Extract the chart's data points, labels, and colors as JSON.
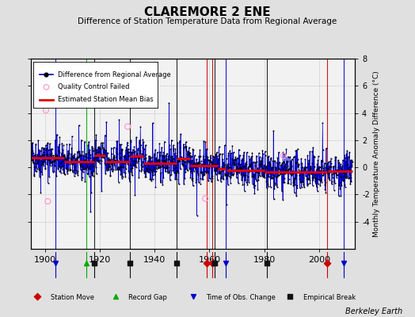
{
  "title": "CLAREMORE 2 ENE",
  "subtitle": "Difference of Station Temperature Data from Regional Average",
  "ylabel": "Monthly Temperature Anomaly Difference (°C)",
  "credit": "Berkeley Earth",
  "xlim": [
    1895,
    2013
  ],
  "ylim": [
    -6,
    8
  ],
  "yticks": [
    -4,
    -2,
    0,
    2,
    4,
    6,
    8
  ],
  "xticks": [
    1900,
    1920,
    1940,
    1960,
    1980,
    2000
  ],
  "start_year": 1895,
  "end_year": 2012,
  "bg_color": "#e0e0e0",
  "plot_bg_color": "#f2f2f2",
  "segment_breaks": [
    1907,
    1918,
    1922,
    1931,
    1936,
    1948,
    1953,
    1963,
    1966,
    1980,
    2003
  ],
  "segment_means": [
    0.7,
    0.4,
    0.9,
    0.4,
    0.85,
    0.3,
    0.65,
    0.1,
    -0.1,
    -0.2,
    -0.35,
    -0.3
  ],
  "station_moves": [
    1959,
    1961,
    2003
  ],
  "record_gaps": [
    1915
  ],
  "tobs_changes": [
    1904,
    1966,
    2009
  ],
  "emp_breaks": [
    1918,
    1931,
    1948,
    1962,
    1981
  ],
  "qc_failed_approx": [
    [
      1900.4,
      4.2
    ],
    [
      1901.1,
      -2.5
    ],
    [
      1930.2,
      3.0
    ],
    [
      1958.5,
      -2.3
    ],
    [
      1987.0,
      0.85
    ]
  ],
  "line_color": "#0000cc",
  "dot_color": "#000000",
  "qc_color": "#ff99cc",
  "bias_color": "#dd0000",
  "sm_color": "#cc0000",
  "rg_color": "#00aa00",
  "tobs_color": "#0000cc",
  "eb_color": "#111111"
}
